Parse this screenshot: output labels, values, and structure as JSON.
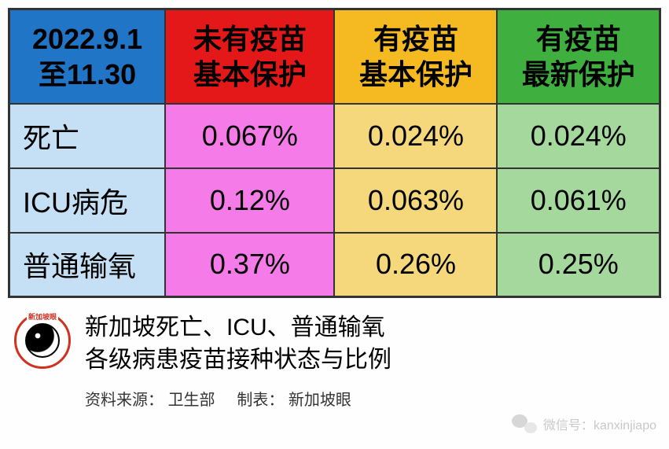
{
  "table": {
    "type": "table",
    "border_color": "#333333",
    "border_width": 2,
    "headers": [
      {
        "line1": "2022.9.1",
        "line2": "至11.30",
        "bg": "#2075c7",
        "color": "#000000"
      },
      {
        "line1": "未有疫苗",
        "line2": "基本保护",
        "bg": "#e41818",
        "color": "#000000"
      },
      {
        "line1": "有疫苗",
        "line2": "基本保护",
        "bg": "#f5b922",
        "color": "#000000"
      },
      {
        "line1": "有疫苗",
        "line2": "最新保护",
        "bg": "#3fb03f",
        "color": "#000000"
      }
    ],
    "row_label_bg": "#c5e0f5",
    "column_bgs": [
      "#c5e0f5",
      "#f57ce8",
      "#f5d87c",
      "#a5d89c"
    ],
    "column_widths": [
      "24%",
      "26%",
      "25%",
      "25%"
    ],
    "rows": [
      {
        "label": "死亡",
        "values": [
          "0.067%",
          "0.024%",
          "0.024%"
        ]
      },
      {
        "label": "ICU病危",
        "values": [
          "0.12%",
          "0.063%",
          "0.061%"
        ]
      },
      {
        "label": "普通输氧",
        "values": [
          "0.37%",
          "0.26%",
          "0.25%"
        ]
      }
    ],
    "header_fontsize": 36,
    "cell_fontsize": 36
  },
  "footer": {
    "logo_label": "新加坡眼",
    "title_line1": "新加坡死亡、ICU、普通输氧",
    "title_line2": "各级病患疫苗接种状态与比例",
    "source_label": "资料来源：",
    "source_value": "卫生部",
    "maker_label": "制表：",
    "maker_value": "新加坡眼"
  },
  "watermark": {
    "label": "微信号：",
    "value": "kanxinjiapo"
  }
}
